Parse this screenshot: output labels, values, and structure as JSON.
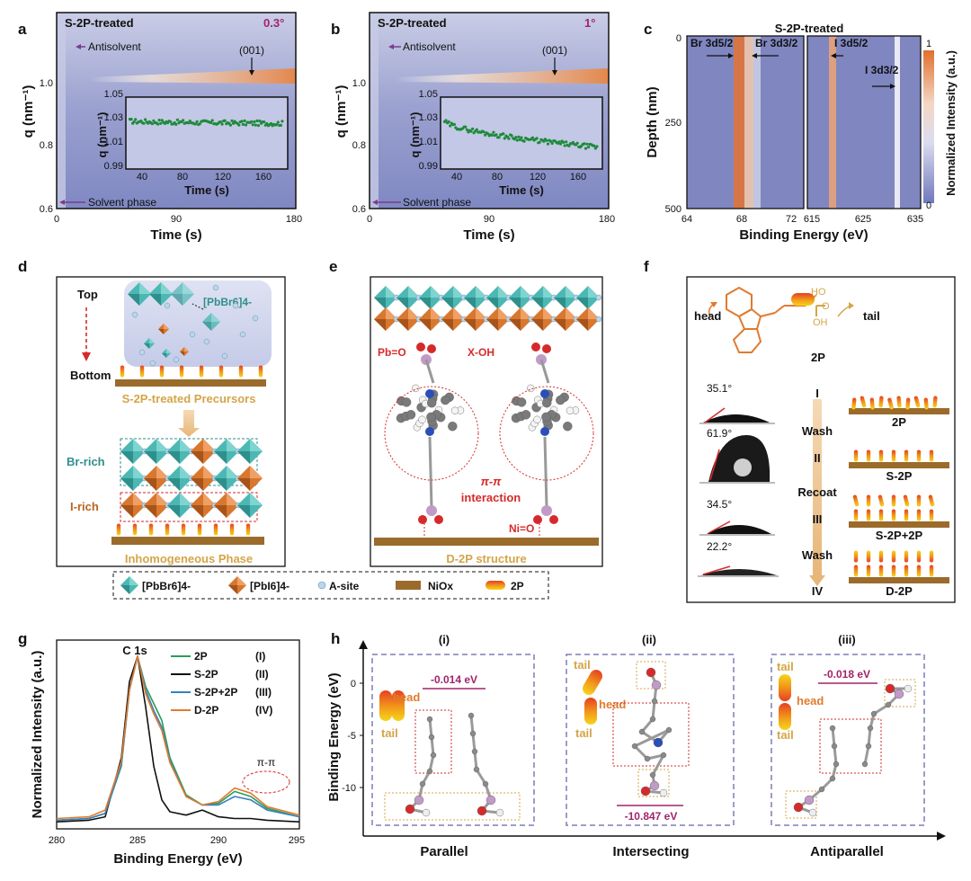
{
  "colors": {
    "teal": "#4fbcb8",
    "orange": "#d9772f",
    "brown": "#9b6b2c",
    "purple": "#7b3b8f",
    "magenta": "#a0246a",
    "red": "#d62a2a",
    "gold": "#d4a548",
    "bg_heat": "#8b93c7",
    "ball": "#b9d6ea"
  },
  "panels": {
    "a": "a",
    "b": "b",
    "c": "c",
    "d": "d",
    "e": "e",
    "f": "f",
    "g": "g",
    "h": "h"
  },
  "panel_a": {
    "title": "S-2P-treated",
    "angle": "0.3°",
    "antisolvent": "Antisolvent",
    "peak": "(001)",
    "solvent": "Solvent phase",
    "ylabel": "q (nm⁻¹)",
    "xlabel": "Time (s)",
    "inset_ylabel": "q (nm⁻¹)",
    "inset_xlabel": "Time (s)",
    "xticks": [
      "0",
      "90",
      "180"
    ],
    "yticks": [
      "0.6",
      "0.8",
      "1.0"
    ],
    "inset_xticks": [
      "40",
      "80",
      "120",
      "160"
    ],
    "inset_yticks": [
      "0.99",
      "1.01",
      "1.03",
      "1.05"
    ]
  },
  "panel_b": {
    "title": "S-2P-treated",
    "angle": "1°",
    "antisolvent": "Antisolvent",
    "peak": "(001)",
    "solvent": "Solvent phase",
    "ylabel": "q (nm⁻¹)",
    "xlabel": "Time (s)",
    "inset_ylabel": "q (nm⁻¹)",
    "inset_xlabel": "Time (s)",
    "xticks": [
      "0",
      "90",
      "180"
    ],
    "yticks": [
      "0.6",
      "0.8",
      "1.0"
    ],
    "inset_xticks": [
      "40",
      "80",
      "120",
      "160"
    ],
    "inset_yticks": [
      "0.99",
      "1.01",
      "1.03",
      "1.05"
    ]
  },
  "panel_c": {
    "title": "S-2P-treated",
    "ylabel": "Depth (nm)",
    "xlabel": "Binding Energy (eV)",
    "colorbar_label": "Normalized Intensity (a.u.)",
    "cb_max": "1",
    "cb_min": "0",
    "br52": "Br 3d5/2",
    "br32": "Br 3d3/2",
    "i52": "I 3d5/2",
    "i32": "I 3d3/2",
    "yticks": [
      "0",
      "250",
      "500"
    ],
    "xticks_left": [
      "64",
      "68",
      "72"
    ],
    "xticks_right": [
      "615",
      "625",
      "635"
    ]
  },
  "panel_d": {
    "top": "Top",
    "bottom": "Bottom",
    "complex": "[PbBr6]4-",
    "precursor_label": "S-2P-treated Precursors",
    "br_rich": "Br-rich",
    "i_rich": "I-rich",
    "phase_label": "Inhomogeneous Phase"
  },
  "panel_e": {
    "pbo": "Pb=O",
    "xoh": "X-OH",
    "pipi": "π-π",
    "interaction": "interaction",
    "nio": "Ni=O",
    "structure": "D-2P structure"
  },
  "legend_de": {
    "pbbr": "[PbBr6]4-",
    "pbi": "[PbI6]4-",
    "asite": "A-site",
    "niox": "NiOx",
    "twop": "2P"
  },
  "panel_f": {
    "head": "head",
    "tail": "tail",
    "molecule": "2P",
    "angles": [
      "35.1°",
      "61.9°",
      "34.5°",
      "22.2°"
    ],
    "steps": [
      "I",
      "Wash",
      "II",
      "Recoat",
      "III",
      "Wash",
      "IV"
    ],
    "samples": [
      "2P",
      "S-2P",
      "S-2P+2P",
      "D-2P"
    ]
  },
  "panel_g": {
    "peak_label": "C 1s",
    "pipi": "π-π",
    "xlabel": "Binding Energy (eV)",
    "ylabel": "Normalized Intensity (a.u.)",
    "xticks": [
      "280",
      "285",
      "290",
      "295"
    ],
    "legend": [
      {
        "name": "2P",
        "tag": "(I)"
      },
      {
        "name": "S-2P",
        "tag": "(II)"
      },
      {
        "name": "S-2P+2P",
        "tag": "(III)"
      },
      {
        "name": "D-2P",
        "tag": "(IV)"
      }
    ]
  },
  "panel_h": {
    "ylabel": "Binding Energy (eV)",
    "yticks": [
      "0",
      "-5",
      "-10"
    ],
    "configs": [
      {
        "roman": "(i)",
        "name": "Parallel",
        "energy": "-0.014 eV"
      },
      {
        "roman": "(ii)",
        "name": "Intersecting",
        "energy": "-10.847 eV"
      },
      {
        "roman": "(iii)",
        "name": "Antiparallel",
        "energy": "-0.018 eV"
      }
    ],
    "head": "head",
    "tail": "tail"
  },
  "chart_data": [
    {
      "type": "line",
      "title": "C 1s",
      "xlabel": "Binding Energy (eV)",
      "ylabel": "Normalized Intensity (a.u.)",
      "xlim": [
        280,
        295
      ],
      "series": [
        {
          "name": "2P (I)",
          "color": "#2a9d5c",
          "x": [
            280,
            282,
            283,
            284,
            284.5,
            285,
            285.5,
            286,
            286.5,
            287,
            288,
            289,
            290,
            291,
            292,
            293,
            295
          ],
          "y": [
            0.03,
            0.04,
            0.07,
            0.35,
            0.8,
            1.0,
            0.82,
            0.72,
            0.62,
            0.4,
            0.18,
            0.12,
            0.13,
            0.2,
            0.17,
            0.1,
            0.05
          ]
        },
        {
          "name": "S-2P (II)",
          "color": "#111111",
          "x": [
            280,
            282,
            283,
            284,
            284.5,
            285,
            285.5,
            286,
            286.5,
            287,
            288,
            289,
            290,
            291,
            292,
            293,
            295
          ],
          "y": [
            0.02,
            0.03,
            0.05,
            0.4,
            0.85,
            1.0,
            0.7,
            0.35,
            0.15,
            0.08,
            0.06,
            0.09,
            0.05,
            0.04,
            0.04,
            0.03,
            0.02
          ]
        },
        {
          "name": "S-2P+2P (III)",
          "color": "#3a7fbf",
          "x": [
            280,
            282,
            283,
            284,
            284.5,
            285,
            285.5,
            286,
            286.5,
            287,
            288,
            289,
            290,
            291,
            292,
            293,
            295
          ],
          "y": [
            0.03,
            0.04,
            0.07,
            0.36,
            0.8,
            1.0,
            0.8,
            0.68,
            0.58,
            0.38,
            0.17,
            0.12,
            0.12,
            0.17,
            0.15,
            0.09,
            0.05
          ]
        },
        {
          "name": "D-2P (IV)",
          "color": "#e07b2f",
          "x": [
            280,
            282,
            283,
            284,
            284.5,
            285,
            285.5,
            286,
            286.5,
            287,
            288,
            289,
            290,
            291,
            292,
            293,
            295
          ],
          "y": [
            0.04,
            0.05,
            0.09,
            0.38,
            0.8,
            1.0,
            0.78,
            0.66,
            0.56,
            0.37,
            0.17,
            0.12,
            0.14,
            0.22,
            0.19,
            0.11,
            0.06
          ]
        }
      ]
    },
    {
      "type": "scatter",
      "title": "S-2P-treated 0.3° inset",
      "xlabel": "Time (s)",
      "ylabel": "q (nm⁻¹)",
      "xlim": [
        20,
        180
      ],
      "ylim": [
        0.99,
        1.05
      ],
      "trend": {
        "start": 1.03,
        "end": 1.028,
        "noise": 0.002
      }
    },
    {
      "type": "scatter",
      "title": "S-2P-treated 1° inset",
      "xlabel": "Time (s)",
      "ylabel": "q (nm⁻¹)",
      "xlim": [
        20,
        180
      ],
      "ylim": [
        0.99,
        1.05
      ],
      "trend": {
        "start": 1.03,
        "end": 1.008,
        "noise": 0.002
      }
    }
  ]
}
